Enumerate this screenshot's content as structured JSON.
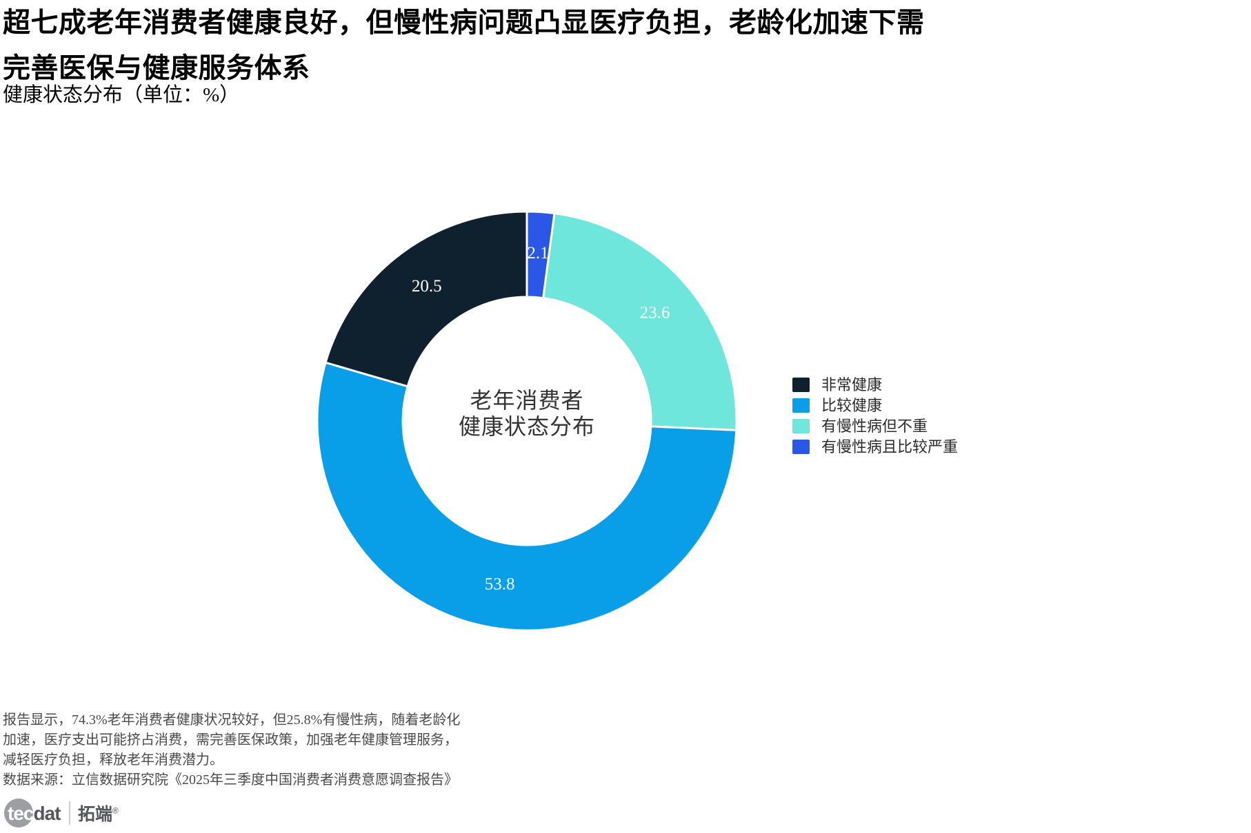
{
  "page": {
    "title_lines": [
      "超七成老年消费者健康良好，但慢性病问题凸显医疗负担，老龄化加速下需",
      "完善医保与健康服务体系"
    ],
    "subtitle": "健康状态分布（单位：%）"
  },
  "chart_data": {
    "type": "pie",
    "variant": "donut",
    "unit": "%",
    "center_label_lines": [
      "老年消费者",
      "健康状态分布"
    ],
    "segments": [
      {
        "label": "非常健康",
        "value": 20.5,
        "color": "#0f202e"
      },
      {
        "label": "比较健康",
        "value": 53.8,
        "color": "#089ee8"
      },
      {
        "label": "有慢性病但不重",
        "value": 23.6,
        "color": "#6fe6dc"
      },
      {
        "label": "有慢性病且比较严重",
        "value": 2.1,
        "color": "#2b57e6"
      }
    ],
    "draw_order_clockwise_from_top": [
      3,
      2,
      1,
      0
    ],
    "label_color": "#ffffff",
    "segment_border_color": "#ffffff",
    "legend_position": "right",
    "legend_order": [
      "非常健康",
      "比较健康",
      "有慢性病但不重",
      "有慢性病且比较严重"
    ]
  },
  "footer": {
    "note_lines": [
      "报告显示，74.3%老年消费者健康状况较好，但25.8%有慢性病，随着老龄化",
      "加速，医疗支出可能挤占消费，需完善医保政策，加强老年健康管理服务，",
      "减轻医疗负担，释放老年消费潜力。"
    ],
    "source": "数据来源：立信数据研究院《2025年三季度中国消费者消费意愿调查报告》"
  },
  "logo": {
    "brand": "tecdat",
    "brand_highlight": "tec",
    "brand_rest": "dat",
    "cn_name": "拓端",
    "registered_mark": "®"
  }
}
